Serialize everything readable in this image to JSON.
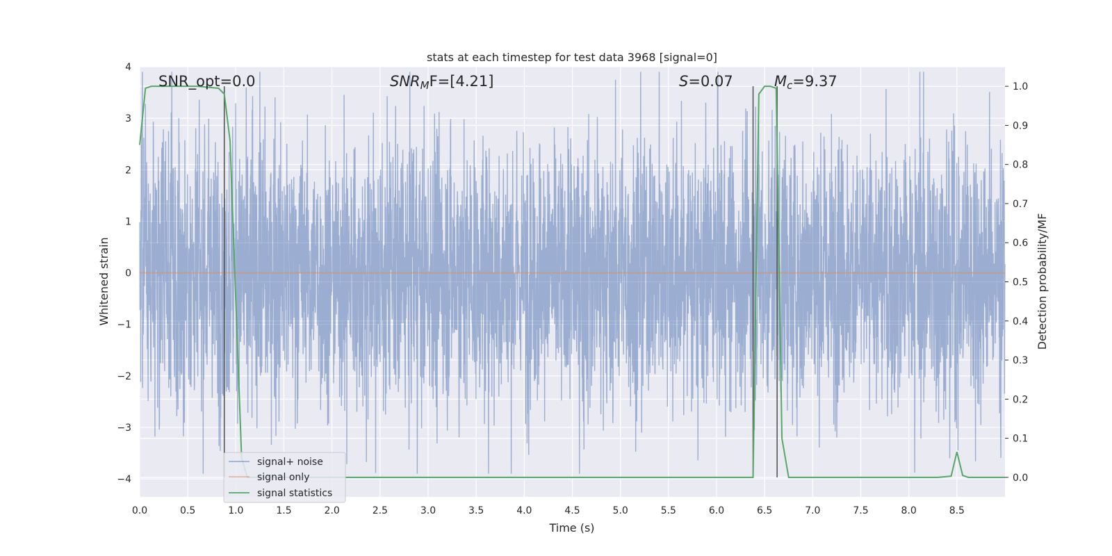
{
  "chart_data": {
    "type": "line",
    "title": "stats at each timestep for test data 3968 [signal=0]",
    "xlabel": "Time (s)",
    "ylabel_left": "Whitened strain",
    "ylabel_right": "Detection probability/MF",
    "xlim": [
      0.0,
      9.0
    ],
    "ylim_left": [
      -4.35,
      4.0
    ],
    "ylim_right": [
      -0.05,
      1.05
    ],
    "x_ticks": [
      "0.0",
      "0.5",
      "1.0",
      "1.5",
      "2.0",
      "2.5",
      "3.0",
      "3.5",
      "4.0",
      "4.5",
      "5.0",
      "5.5",
      "6.0",
      "6.5",
      "7.0",
      "7.5",
      "8.0",
      "8.5"
    ],
    "y_ticks_left": [
      "4",
      "3",
      "2",
      "1",
      "0",
      "−1",
      "−2",
      "−3",
      "−4"
    ],
    "y_ticks_right": [
      "1.0",
      "0.9",
      "0.8",
      "0.7",
      "0.6",
      "0.5",
      "0.4",
      "0.3",
      "0.2",
      "0.1",
      "0.0"
    ],
    "grid": true,
    "legend_position": "lower-left",
    "annotations": {
      "snr_opt": "SNR_opt=0.0",
      "snr_mf": "SNR",
      "snr_mf_sub": "M",
      "snr_mf_rest": "F=[4.21]",
      "s_var": "S",
      "s_val": "=0.07",
      "mc_var": "M",
      "mc_sub": "c",
      "mc_val": "=9.37"
    },
    "vertical_lines_x": [
      0.88,
      6.38,
      6.63
    ],
    "series": [
      {
        "name": "signal+ noise",
        "color": "#4c72b0",
        "kind": "noise",
        "duration": 9.0,
        "typical_amplitude": 1.3,
        "peak_amplitude": 3.9
      },
      {
        "name": "signal only",
        "color": "#dd8452",
        "x": [
          0.0,
          9.0
        ],
        "y": [
          0.0,
          0.0
        ]
      },
      {
        "name": "signal statistics",
        "color": "#55a868",
        "axis": "right",
        "x": [
          0.0,
          0.06,
          0.12,
          0.3,
          0.6,
          0.82,
          0.88,
          0.94,
          1.0,
          1.06,
          1.12,
          1.5,
          2.0,
          3.0,
          4.0,
          5.0,
          6.0,
          6.38,
          6.44,
          6.5,
          6.56,
          6.62,
          6.68,
          6.75,
          7.0,
          7.5,
          8.0,
          8.3,
          8.44,
          8.5,
          8.56,
          8.62,
          8.75,
          9.0
        ],
        "y": [
          0.85,
          0.995,
          1.0,
          1.0,
          1.0,
          0.995,
          0.98,
          0.86,
          0.45,
          0.05,
          0.0,
          0.0,
          0.0,
          0.0,
          0.0,
          0.0,
          0.0,
          0.0,
          0.98,
          1.0,
          1.0,
          0.995,
          0.1,
          0.0,
          0.0,
          0.0,
          0.0,
          0.0,
          0.003,
          0.065,
          0.005,
          0.0,
          0.0,
          0.0
        ]
      }
    ]
  }
}
